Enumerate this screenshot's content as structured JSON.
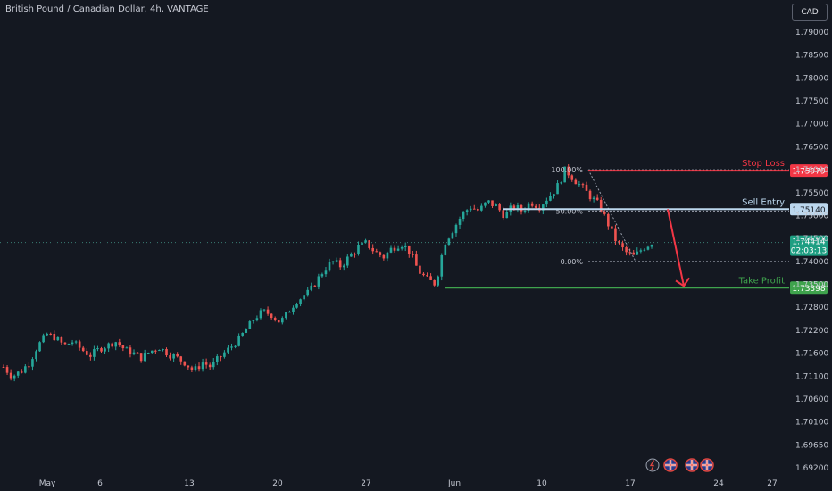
{
  "header": {
    "title": "British Pound / Canadian Dollar, 4h, VANTAGE",
    "currency_button": "CAD"
  },
  "colors": {
    "background": "#141821",
    "up": "#26a69a",
    "down": "#ef5350",
    "stop_loss": "#f23645",
    "sell_entry": "#bcd7ee",
    "take_profit": "#3fa34d",
    "current_price": "#1e9e82",
    "grid_text": "#c3c7d1"
  },
  "chart_data": {
    "type": "candlestick",
    "title": "British Pound / Canadian Dollar, 4h, VANTAGE",
    "y_ticks": [
      "1.79000",
      "1.78500",
      "1.78000",
      "1.77500",
      "1.77000",
      "1.76500",
      "1.76000",
      "1.75500",
      "1.75000",
      "1.74500",
      "1.74000",
      "1.73500",
      "1.72800",
      "1.72200",
      "1.71600",
      "1.71100",
      "1.70600",
      "1.70100",
      "1.69650",
      "1.69200"
    ],
    "x_ticks": [
      "May",
      "6",
      "13",
      "20",
      "27",
      "Jun",
      "10",
      "17",
      "24",
      "27"
    ],
    "y_range": [
      1.692,
      1.793
    ],
    "fib_levels": [
      {
        "label": "100.00%",
        "price": 1.76
      },
      {
        "label": "50.00%",
        "price": 1.751
      },
      {
        "label": "0.00%",
        "price": 1.74
      }
    ],
    "levels": {
      "stop_loss": {
        "label": "Stop Loss",
        "price": "1.75979",
        "value": 1.75979
      },
      "sell_entry": {
        "label": "Sell Entry",
        "price": "1.75140",
        "value": 1.7514
      },
      "take_profit": {
        "label": "Take Profit",
        "price": "1.73398",
        "value": 1.73398
      }
    },
    "current_price": {
      "price": "1.74414",
      "countdown": "02:03:13",
      "value": 1.74414
    },
    "candle_close_path": [
      1.713,
      1.711,
      1.712,
      1.714,
      1.718,
      1.721,
      1.72,
      1.718,
      1.719,
      1.717,
      1.7155,
      1.717,
      1.718,
      1.719,
      1.717,
      1.716,
      1.715,
      1.7165,
      1.7175,
      1.716,
      1.715,
      1.714,
      1.712,
      1.714,
      1.713,
      1.715,
      1.717,
      1.719,
      1.722,
      1.725,
      1.727,
      1.726,
      1.724,
      1.727,
      1.73,
      1.732,
      1.735,
      1.738,
      1.74,
      1.739,
      1.741,
      1.743,
      1.744,
      1.742,
      1.741,
      1.743,
      1.744,
      1.742,
      1.738,
      1.736,
      1.735,
      1.744,
      1.747,
      1.75,
      1.752,
      1.751,
      1.753,
      1.752,
      1.75,
      1.752,
      1.751,
      1.753,
      1.752,
      1.754,
      1.756,
      1.76,
      1.758,
      1.756,
      1.754,
      1.752,
      1.748,
      1.744,
      1.742,
      1.741,
      1.743,
      1.7441
    ]
  },
  "toolbar_icons": [
    "lightning-icon",
    "flag-uk-icon",
    "flag-uk-icon",
    "flag-uk-icon"
  ]
}
